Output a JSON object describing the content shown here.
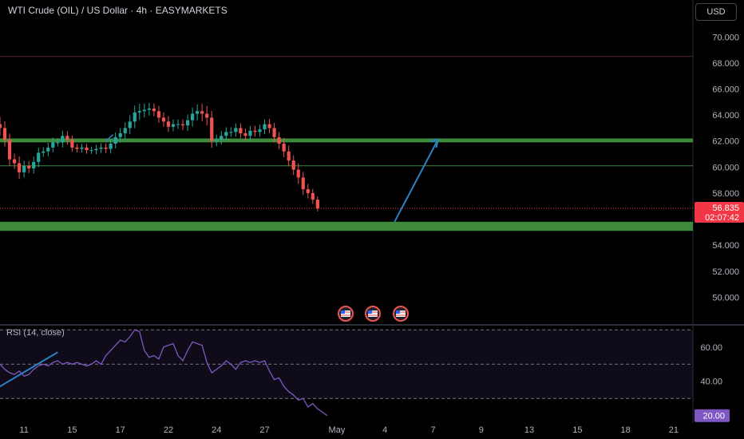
{
  "header": {
    "title": "WTI Crude (OIL) / US Dollar · 4h · EASYMARKETS"
  },
  "currency_button": "USD",
  "rsi_label": "RSI (14, close)",
  "price_badge": {
    "price": "56.835",
    "countdown": "02:07:42",
    "color": "#f23645"
  },
  "rsi_badge": {
    "value": "20.00",
    "color": "#7e57c2"
  },
  "colors": {
    "up": "#26a69a",
    "down": "#ef5350",
    "zone": "#3d8a3d",
    "arrow": "#2a82c4",
    "rsi": "#7e57c2"
  },
  "event_icons": [
    "us-flag-icon",
    "us-flag-icon",
    "us-flag-icon"
  ],
  "chart_data": [
    {
      "type": "candlestick",
      "ylim": [
        48.0,
        71.0
      ],
      "y_ticks": [
        "70.000",
        "68.000",
        "66.000",
        "64.000",
        "62.000",
        "60.000",
        "58.000",
        "54.000",
        "52.000",
        "50.000"
      ],
      "x_ticks": [
        "11",
        "15",
        "17",
        "22",
        "24",
        "27",
        "May",
        "4",
        "7",
        "9",
        "13",
        "15",
        "18",
        "21"
      ],
      "x_tick_idx": [
        5,
        15,
        25,
        35,
        45,
        55,
        70,
        80,
        90,
        100,
        110,
        120,
        130,
        140
      ],
      "x_idx_range": [
        0,
        144
      ],
      "close": [
        63.0,
        62.1,
        60.6,
        60.3,
        59.6,
        60.1,
        59.9,
        60.4,
        61.1,
        61.2,
        61.5,
        61.9,
        61.9,
        62.4,
        62.1,
        61.5,
        61.4,
        61.5,
        61.3,
        61.3,
        61.4,
        61.5,
        61.4,
        61.8,
        62.3,
        62.6,
        63.0,
        63.5,
        64.2,
        64.3,
        64.4,
        64.5,
        64.3,
        63.8,
        63.5,
        63.1,
        63.3,
        63.3,
        63.2,
        63.6,
        64.1,
        64.3,
        64.1,
        63.8,
        62.0,
        62.1,
        62.4,
        62.7,
        62.7,
        63.0,
        62.6,
        62.4,
        62.8,
        62.7,
        62.9,
        63.3,
        63.0,
        62.3,
        61.8,
        61.2,
        60.5,
        59.8,
        59.2,
        58.3,
        58.0,
        57.5,
        56.835
      ],
      "hl_spread": [
        1.4,
        1.3,
        1.2,
        1.1,
        1.3,
        1.0,
        0.9,
        1.0,
        1.0,
        0.8,
        0.9,
        0.9,
        0.8,
        1.0,
        0.9,
        0.8,
        0.7,
        0.7,
        0.7,
        0.7,
        0.8,
        0.8,
        0.8,
        0.9,
        0.9,
        1.0,
        1.1,
        1.2,
        1.3,
        1.4,
        1.2,
        1.1,
        1.0,
        1.0,
        1.0,
        1.0,
        0.9,
        0.9,
        0.9,
        1.1,
        1.2,
        1.3,
        1.4,
        1.5,
        1.3,
        1.0,
        0.9,
        0.9,
        0.9,
        0.9,
        0.9,
        0.9,
        0.9,
        0.9,
        0.9,
        0.9,
        1.0,
        1.0,
        1.0,
        1.1,
        1.1,
        1.0,
        1.2,
        1.1,
        1.0,
        0.8,
        0.6
      ]
    },
    {
      "type": "line",
      "title": "RSI (14, close)",
      "ylim": [
        18,
        72
      ],
      "y_ticks": [
        "60.00",
        "40.00"
      ],
      "levels": [
        70,
        50,
        30
      ],
      "x_idx_range": [
        0,
        144
      ],
      "values": [
        50,
        47,
        45,
        44,
        46,
        43,
        44,
        47,
        49,
        50,
        49,
        51,
        52,
        50,
        51,
        50,
        51,
        50,
        49,
        50,
        52,
        50,
        55,
        58,
        61,
        64,
        63,
        66,
        70,
        69,
        58,
        54,
        55,
        53,
        60,
        61,
        62,
        55,
        52,
        58,
        63,
        62,
        61,
        51,
        45,
        47,
        49,
        52,
        50,
        47,
        51,
        52,
        51,
        52,
        51,
        52,
        46,
        41,
        42,
        37,
        34,
        32,
        29,
        30,
        25,
        27,
        24,
        22,
        20
      ]
    }
  ]
}
